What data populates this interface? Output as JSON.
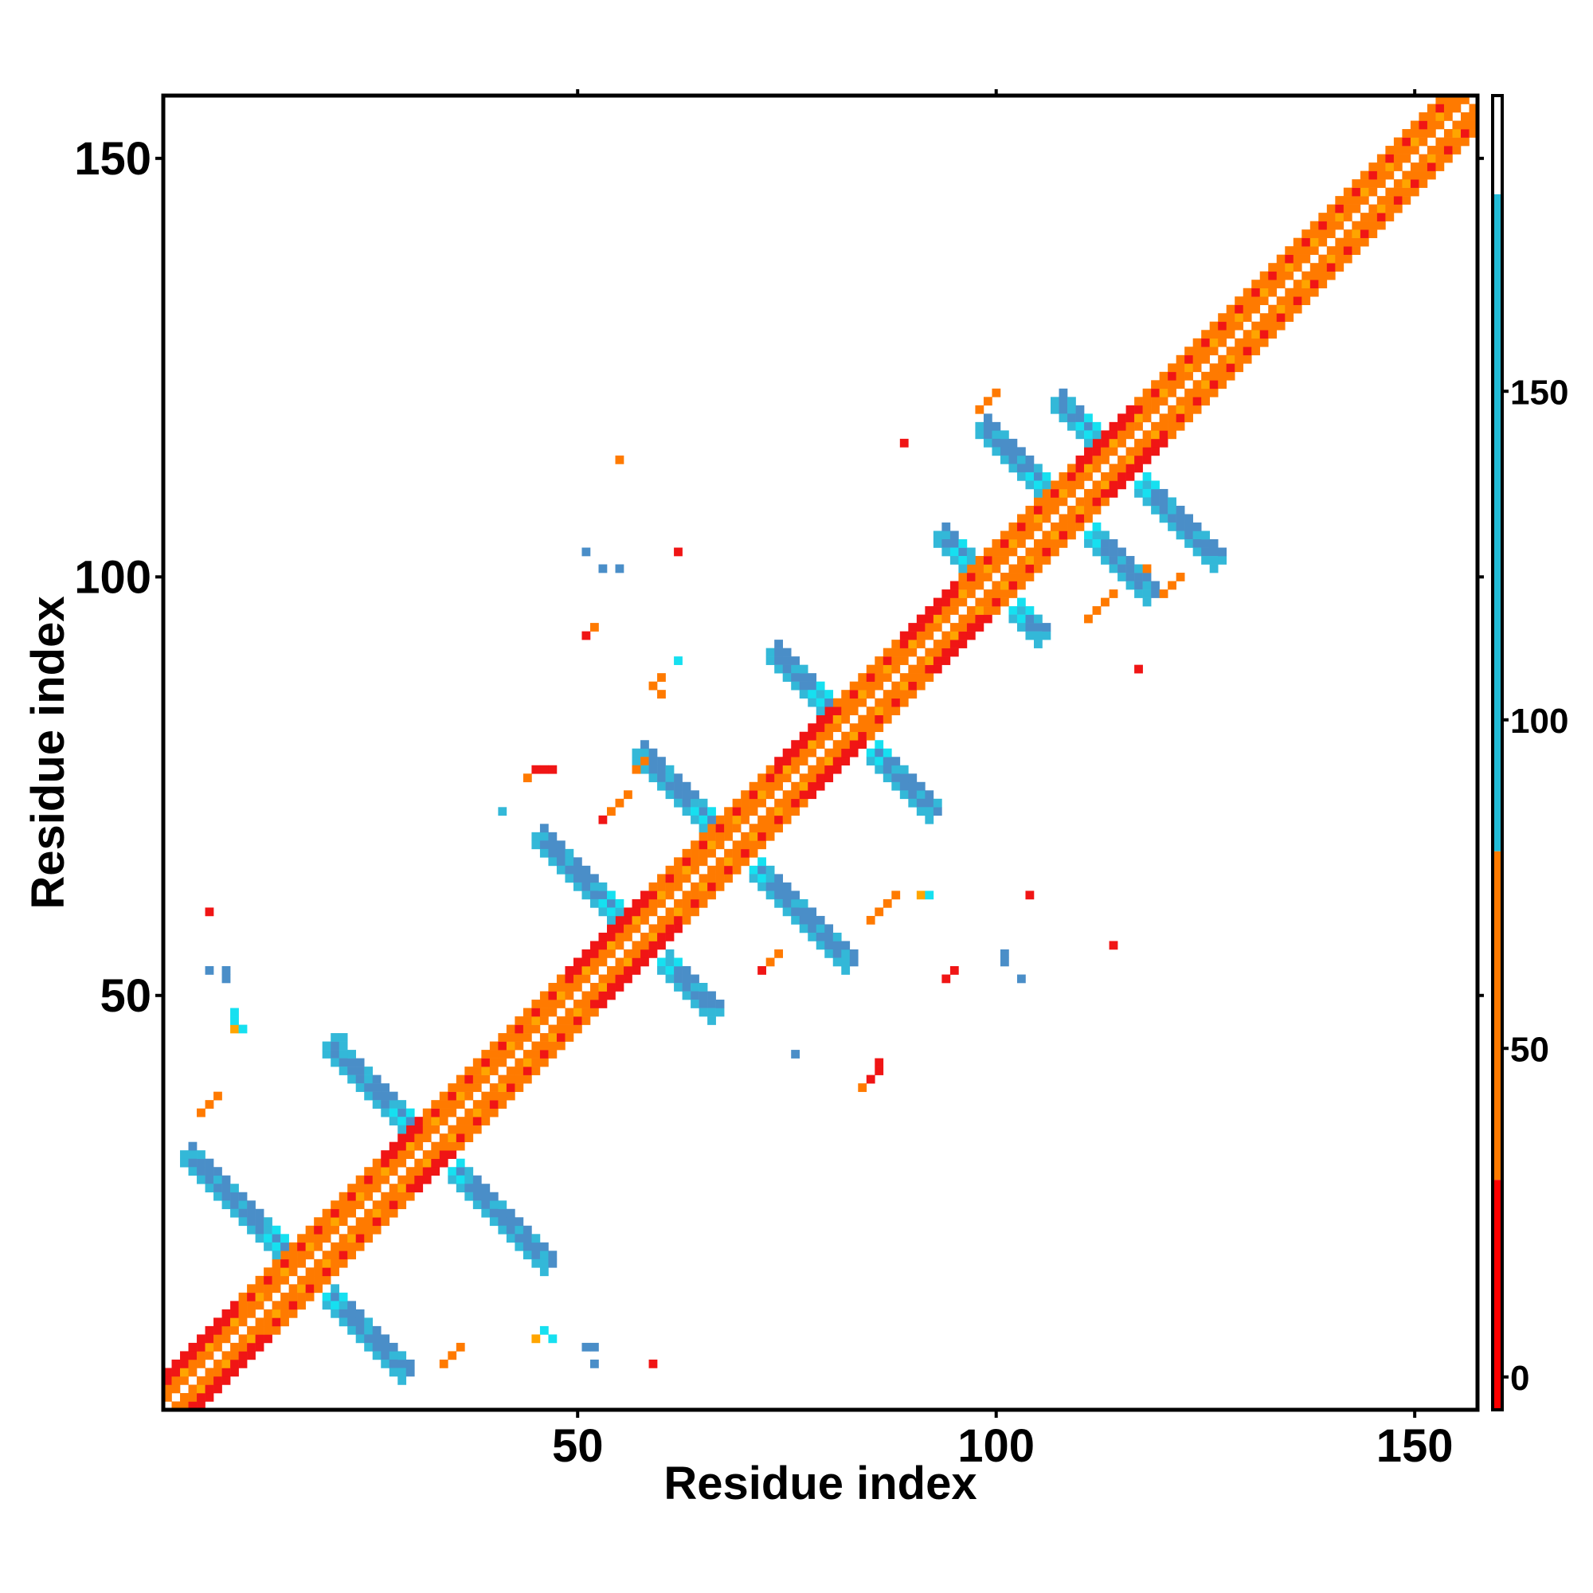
{
  "chart_data": {
    "type": "heatmap",
    "title": "",
    "xlabel": "Residue index",
    "ylabel": "Residue index",
    "xlim": [
      1,
      157
    ],
    "ylim": [
      1,
      157
    ],
    "xticks": [
      50,
      100,
      150
    ],
    "yticks": [
      50,
      100,
      150
    ],
    "colorbar": {
      "range": [
        -5,
        195
      ],
      "ticks": [
        0,
        50,
        100,
        150
      ],
      "bands": [
        {
          "from": -5,
          "to": 30,
          "color": "#ff0000"
        },
        {
          "from": 30,
          "to": 80,
          "color": "#ff7a00"
        },
        {
          "from": 80,
          "to": 180,
          "color": "#22bcd8"
        },
        {
          "from": 180,
          "to": 195,
          "color": "#ffffff"
        }
      ]
    },
    "colors": {
      "red": "#f01515",
      "orange": "#ff7a00",
      "amber": "#ffa500",
      "cyan": "#16e0f0",
      "lightblue": "#33b8d8",
      "steelblue": "#4a8ec8"
    },
    "diagonal_band": {
      "from": 1,
      "to": 157
    },
    "helix_blocks": [
      [
        1,
        9
      ],
      [
        27,
        31
      ],
      [
        49,
        58
      ],
      [
        74,
        80
      ],
      [
        89,
        95
      ],
      [
        110,
        116
      ]
    ],
    "cross_motifs": [
      {
        "center": [
          17,
          17
        ],
        "anti_from": 3,
        "anti_to": 29
      },
      {
        "center": [
          32,
          32
        ],
        "anti_from": 20,
        "anti_to": 46
      },
      {
        "center": [
          57,
          57
        ],
        "anti_from": 45,
        "anti_to": 66
      },
      {
        "center": [
          68,
          68
        ],
        "anti_from": 57,
        "anti_to": 82
      },
      {
        "center": [
          82,
          82
        ],
        "anti_from": 73,
        "anti_to": 92
      },
      {
        "center": [
          99,
          99
        ],
        "anti_from": 93,
        "anti_to": 105
      },
      {
        "center": [
          108,
          108
        ],
        "anti_from": 98,
        "anti_to": 118
      },
      {
        "center": [
          114,
          114
        ],
        "anti_from": 107,
        "anti_to": 126
      }
    ],
    "scattered_points": [
      [
        5,
        36,
        "orange"
      ],
      [
        6,
        37,
        "orange"
      ],
      [
        7,
        38,
        "orange"
      ],
      [
        9,
        46,
        "amber"
      ],
      [
        9,
        47,
        "cyan"
      ],
      [
        10,
        46,
        "cyan"
      ],
      [
        9,
        48,
        "cyan"
      ],
      [
        6,
        53,
        "steelblue"
      ],
      [
        8,
        53,
        "steelblue"
      ],
      [
        8,
        52,
        "steelblue"
      ],
      [
        6,
        60,
        "red"
      ],
      [
        21,
        45,
        "lightblue"
      ],
      [
        22,
        45,
        "lightblue"
      ],
      [
        22,
        44,
        "lightblue"
      ],
      [
        23,
        43,
        "lightblue"
      ],
      [
        34,
        6,
        "orange"
      ],
      [
        35,
        7,
        "orange"
      ],
      [
        36,
        8,
        "orange"
      ],
      [
        45,
        9,
        "amber"
      ],
      [
        46,
        10,
        "cyan"
      ],
      [
        47,
        9,
        "cyan"
      ],
      [
        51,
        8,
        "steelblue"
      ],
      [
        52,
        8,
        "steelblue"
      ],
      [
        52,
        6,
        "steelblue"
      ],
      [
        59,
        6,
        "red"
      ],
      [
        44,
        76,
        "orange"
      ],
      [
        45,
        77,
        "red"
      ],
      [
        46,
        77,
        "red"
      ],
      [
        47,
        77,
        "red"
      ],
      [
        41,
        72,
        "lightblue"
      ],
      [
        51,
        93,
        "red"
      ],
      [
        52,
        94,
        "orange"
      ],
      [
        51,
        103,
        "steelblue"
      ],
      [
        53,
        101,
        "steelblue"
      ],
      [
        55,
        101,
        "steelblue"
      ],
      [
        55,
        114,
        "orange"
      ],
      [
        62,
        90,
        "cyan"
      ],
      [
        60,
        88,
        "orange"
      ],
      [
        59,
        87,
        "orange"
      ],
      [
        60,
        86,
        "orange"
      ],
      [
        53,
        71,
        "red"
      ],
      [
        54,
        72,
        "orange"
      ],
      [
        55,
        73,
        "orange"
      ],
      [
        56,
        74,
        "orange"
      ],
      [
        57,
        77,
        "orange"
      ],
      [
        58,
        78,
        "orange"
      ],
      [
        62,
        103,
        "red"
      ],
      [
        89,
        116,
        "red"
      ],
      [
        72,
        53,
        "red"
      ],
      [
        73,
        54,
        "orange"
      ],
      [
        74,
        55,
        "orange"
      ],
      [
        76,
        43,
        "steelblue"
      ],
      [
        84,
        39,
        "orange"
      ],
      [
        85,
        40,
        "red"
      ],
      [
        86,
        41,
        "red"
      ],
      [
        86,
        42,
        "red"
      ],
      [
        85,
        59,
        "orange"
      ],
      [
        86,
        60,
        "orange"
      ],
      [
        87,
        61,
        "orange"
      ],
      [
        88,
        62,
        "orange"
      ],
      [
        91,
        62,
        "amber"
      ],
      [
        92,
        62,
        "cyan"
      ],
      [
        94,
        52,
        "red"
      ],
      [
        95,
        53,
        "red"
      ],
      [
        101,
        55,
        "steelblue"
      ],
      [
        101,
        54,
        "steelblue"
      ],
      [
        103,
        52,
        "steelblue"
      ],
      [
        104,
        62,
        "red"
      ],
      [
        114,
        56,
        "red"
      ],
      [
        117,
        89,
        "red"
      ],
      [
        111,
        95,
        "orange"
      ],
      [
        112,
        96,
        "orange"
      ],
      [
        113,
        97,
        "orange"
      ],
      [
        114,
        98,
        "orange"
      ],
      [
        98,
        120,
        "orange"
      ],
      [
        99,
        121,
        "orange"
      ],
      [
        100,
        122,
        "orange"
      ],
      [
        120,
        98,
        "orange"
      ],
      [
        121,
        99,
        "orange"
      ],
      [
        122,
        100,
        "orange"
      ],
      [
        118,
        101,
        "orange"
      ]
    ]
  }
}
